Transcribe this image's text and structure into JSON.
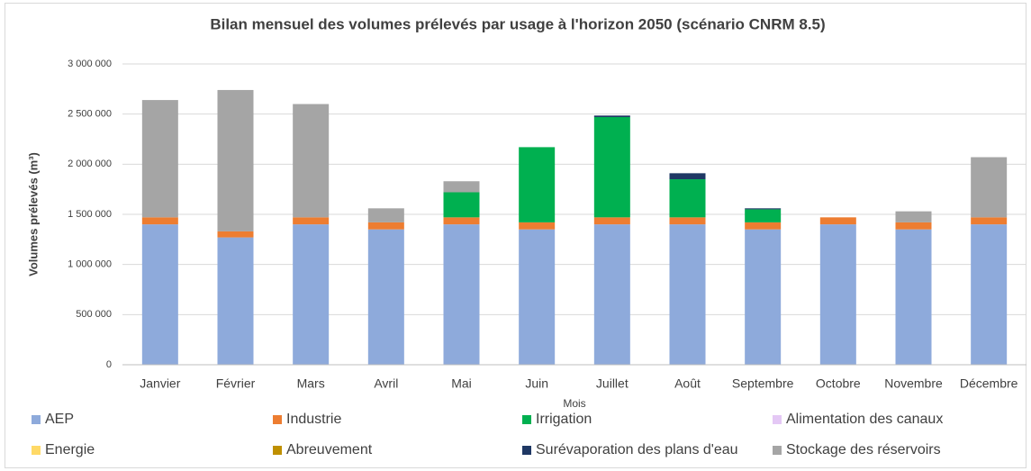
{
  "chart_data": {
    "type": "stacked_bar",
    "title": "Bilan mensuel des volumes prélevés par usage à l'horizon 2050 (scénario CNRM 8.5)",
    "x_label": "Mois",
    "y_label": "Volumes prélevés (m³)",
    "categories": [
      "Janvier",
      "Février",
      "Mars",
      "Avril",
      "Mai",
      "Juin",
      "Juillet",
      "Août",
      "Septembre",
      "Octobre",
      "Novembre",
      "Décembre"
    ],
    "ylim": [
      0,
      3000000
    ],
    "yticks": [
      0,
      {
        "value": 500000,
        "label": "500 000"
      },
      {
        "value": 1000000,
        "label": "1 000 000"
      },
      {
        "value": 1500000,
        "label": "1 500 000"
      },
      {
        "value": 2000000,
        "label": "2 000 000"
      },
      {
        "value": 2500000,
        "label": "2 500 000"
      },
      {
        "value": 3000000,
        "label": "3 000 000"
      }
    ],
    "grid": true,
    "legend": "bottom",
    "series": [
      {
        "name": "AEP",
        "color": "#8eaadb",
        "values": [
          1400000,
          1270000,
          1400000,
          1350000,
          1400000,
          1350000,
          1400000,
          1400000,
          1350000,
          1400000,
          1350000,
          1400000
        ]
      },
      {
        "name": "Industrie",
        "color": "#ed7d31",
        "values": [
          70000,
          60000,
          70000,
          70000,
          70000,
          70000,
          70000,
          70000,
          70000,
          70000,
          70000,
          70000
        ]
      },
      {
        "name": "Irrigation",
        "color": "#00b050",
        "values": [
          0,
          0,
          0,
          0,
          250000,
          750000,
          1000000,
          380000,
          130000,
          0,
          0,
          0
        ]
      },
      {
        "name": "Alimentation des canaux",
        "color": "#e4c8f5",
        "values": [
          0,
          0,
          0,
          0,
          0,
          0,
          0,
          0,
          0,
          0,
          0,
          0
        ]
      },
      {
        "name": "Energie",
        "color": "#ffd966",
        "values": [
          0,
          0,
          0,
          0,
          0,
          0,
          0,
          0,
          0,
          0,
          0,
          0
        ]
      },
      {
        "name": "Abreuvement",
        "color": "#bf9000",
        "values": [
          0,
          0,
          0,
          0,
          0,
          0,
          0,
          0,
          0,
          0,
          0,
          0
        ]
      },
      {
        "name": "Surévaporation des plans d'eau",
        "color": "#1f3864",
        "values": [
          0,
          0,
          0,
          0,
          0,
          0,
          15000,
          60000,
          10000,
          0,
          0,
          0
        ]
      },
      {
        "name": "Stockage des réservoirs",
        "color": "#a5a5a5",
        "values": [
          1170000,
          1410000,
          1130000,
          140000,
          110000,
          0,
          0,
          0,
          0,
          0,
          110000,
          600000
        ]
      }
    ]
  }
}
